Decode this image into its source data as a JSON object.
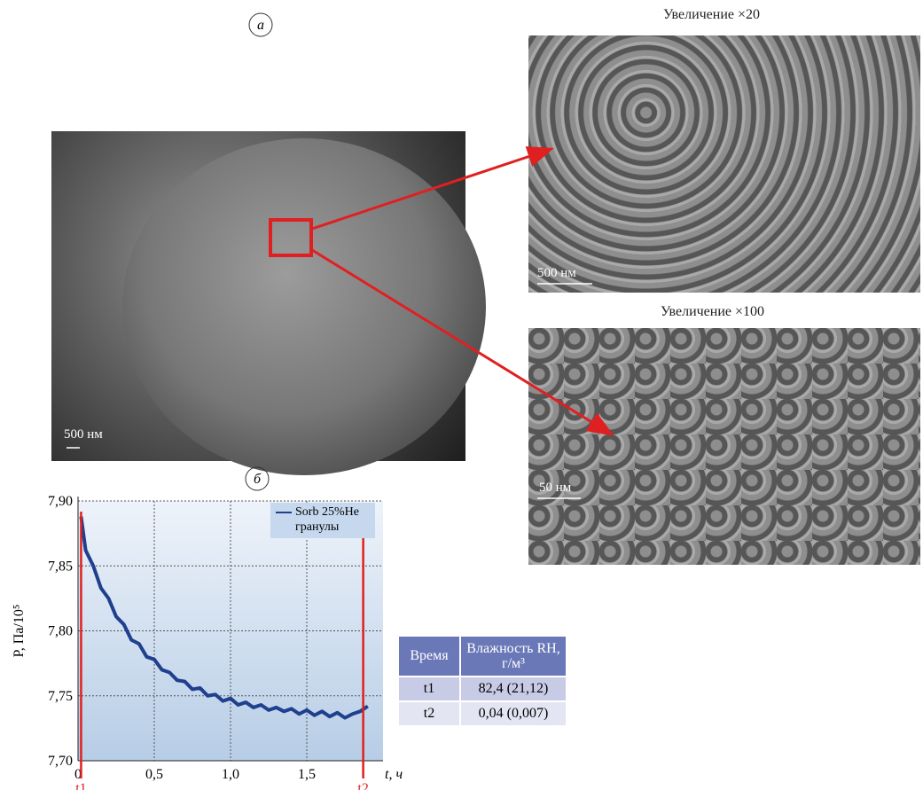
{
  "panel_a": "а",
  "panel_b": "б",
  "images": {
    "overview_scale": "500 нм",
    "zoom20_caption": "Увеличение ×20",
    "zoom20_scale": "500 нм",
    "zoom100_caption": "Увеличение ×100",
    "zoom100_scale": "50 нм"
  },
  "chart_data": {
    "type": "line",
    "x_label": "t, ч",
    "y_label": "P, Па/10⁵",
    "x": [
      0.02,
      0.05,
      0.1,
      0.15,
      0.2,
      0.25,
      0.3,
      0.35,
      0.4,
      0.45,
      0.5,
      0.55,
      0.6,
      0.65,
      0.7,
      0.75,
      0.8,
      0.85,
      0.9,
      0.95,
      1.0,
      1.05,
      1.1,
      1.15,
      1.2,
      1.25,
      1.3,
      1.35,
      1.4,
      1.45,
      1.5,
      1.55,
      1.6,
      1.65,
      1.7,
      1.75,
      1.8,
      1.85,
      1.9
    ],
    "series": [
      {
        "name": "Sorb 25%Не гранулы",
        "color": "#1f3f8f",
        "values": [
          7.888,
          7.862,
          7.85,
          7.833,
          7.825,
          7.811,
          7.805,
          7.793,
          7.79,
          7.78,
          7.778,
          7.77,
          7.768,
          7.762,
          7.761,
          7.755,
          7.756,
          7.75,
          7.751,
          7.746,
          7.748,
          7.743,
          7.745,
          7.741,
          7.743,
          7.739,
          7.741,
          7.738,
          7.74,
          7.736,
          7.739,
          7.735,
          7.738,
          7.734,
          7.737,
          7.733,
          7.736,
          7.738,
          7.742
        ]
      }
    ],
    "xlim": [
      0,
      2.0
    ],
    "ylim": [
      7.7,
      7.9
    ],
    "xticks": [
      0,
      {
        "value": 0.5,
        "label": "0,5"
      },
      {
        "value": 1.0,
        "label": "1,0"
      },
      {
        "value": 1.5,
        "label": "1,5"
      }
    ],
    "yticks": [
      {
        "value": 7.7,
        "label": "7,70"
      },
      {
        "value": 7.75,
        "label": "7,75"
      },
      {
        "value": 7.8,
        "label": "7,80"
      },
      {
        "value": 7.85,
        "label": "7,85"
      },
      {
        "value": 7.9,
        "label": "7,90"
      }
    ],
    "grid": true,
    "legend": "upper right",
    "markers": [
      {
        "label": "t1",
        "x": 0.02,
        "color": "#e02020"
      },
      {
        "label": "t2",
        "x": 1.87,
        "color": "#e02020"
      }
    ]
  },
  "table": {
    "header": [
      "Время",
      "Влажность RH, г/м³"
    ],
    "rows": [
      [
        "t1",
        "82,4 (21,12)"
      ],
      [
        "t2",
        "0,04 (0,007)"
      ]
    ]
  }
}
